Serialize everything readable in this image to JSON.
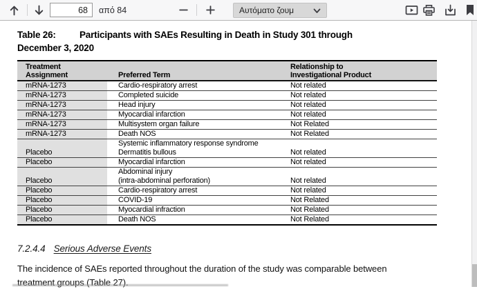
{
  "toolbar": {
    "page_input_value": "68",
    "page_count_label": "από 84",
    "zoom_select_value": "Αυτόματο ζουμ",
    "icons": [
      "page-up-icon",
      "page-down-icon",
      "zoom-out-icon",
      "zoom-in-icon",
      "chevron-down-icon",
      "presentation-mode-icon",
      "print-icon",
      "save-icon",
      "bookmark-icon"
    ]
  },
  "colors": {
    "toolbar_bg": "#f7f7f8",
    "table_header_bg": "#d2d2d2",
    "table_col1_bg": "#e0e0e0",
    "border_dark": "#000000"
  },
  "document": {
    "title": {
      "label": "Table 26:",
      "line1": "Participants with SAEs Resulting in Death in Study 301 through",
      "line2": "December 3, 2020"
    },
    "table": {
      "headers": [
        {
          "lines": [
            "Treatment",
            "Assignment"
          ]
        },
        {
          "lines": [
            "Preferred Term"
          ]
        },
        {
          "lines": [
            "Relationship to",
            "Investigational Product"
          ]
        }
      ],
      "rows": [
        {
          "treatment": "mRNA-1273",
          "term": [
            "Cardio-respiratory arrest"
          ],
          "relationship": "Not related"
        },
        {
          "treatment": "mRNA-1273",
          "term": [
            "Completed suicide"
          ],
          "relationship": "Not related"
        },
        {
          "treatment": "mRNA-1273",
          "term": [
            "Head injury"
          ],
          "relationship": "Not related"
        },
        {
          "treatment": "mRNA-1273",
          "term": [
            "Myocardial infarction"
          ],
          "relationship": "Not related"
        },
        {
          "treatment": "mRNA-1273",
          "term": [
            "Multisystem organ failure"
          ],
          "relationship": "Not Related"
        },
        {
          "treatment": "mRNA-1273",
          "term": [
            "Death NOS"
          ],
          "relationship": "Not Related"
        },
        {
          "treatment": "Placebo",
          "term": [
            "Systemic inflammatory response syndrome",
            "Dermatitis bullous"
          ],
          "relationship": "Not related"
        },
        {
          "treatment": "Placebo",
          "term": [
            "Myocardial infarction"
          ],
          "relationship": "Not related"
        },
        {
          "treatment": "Placebo",
          "term": [
            "Abdominal injury",
            "(intra-abdominal perforation)"
          ],
          "relationship": "Not related"
        },
        {
          "treatment": "Placebo",
          "term": [
            "Cardio-respiratory arrest"
          ],
          "relationship": "Not related"
        },
        {
          "treatment": "Placebo",
          "term": [
            "COVID-19"
          ],
          "relationship": "Not Related"
        },
        {
          "treatment": "Placebo",
          "term": [
            "Myocardial infraction"
          ],
          "relationship": "Not Related"
        },
        {
          "treatment": "Placebo",
          "term": [
            "Death NOS"
          ],
          "relationship": "Not Related"
        }
      ]
    },
    "section": {
      "number": "7.2.4.4",
      "title": "Serious Adverse Events"
    },
    "paragraph": "The incidence of SAEs reported throughout the duration of the study was comparable between treatment groups (Table 27)."
  }
}
